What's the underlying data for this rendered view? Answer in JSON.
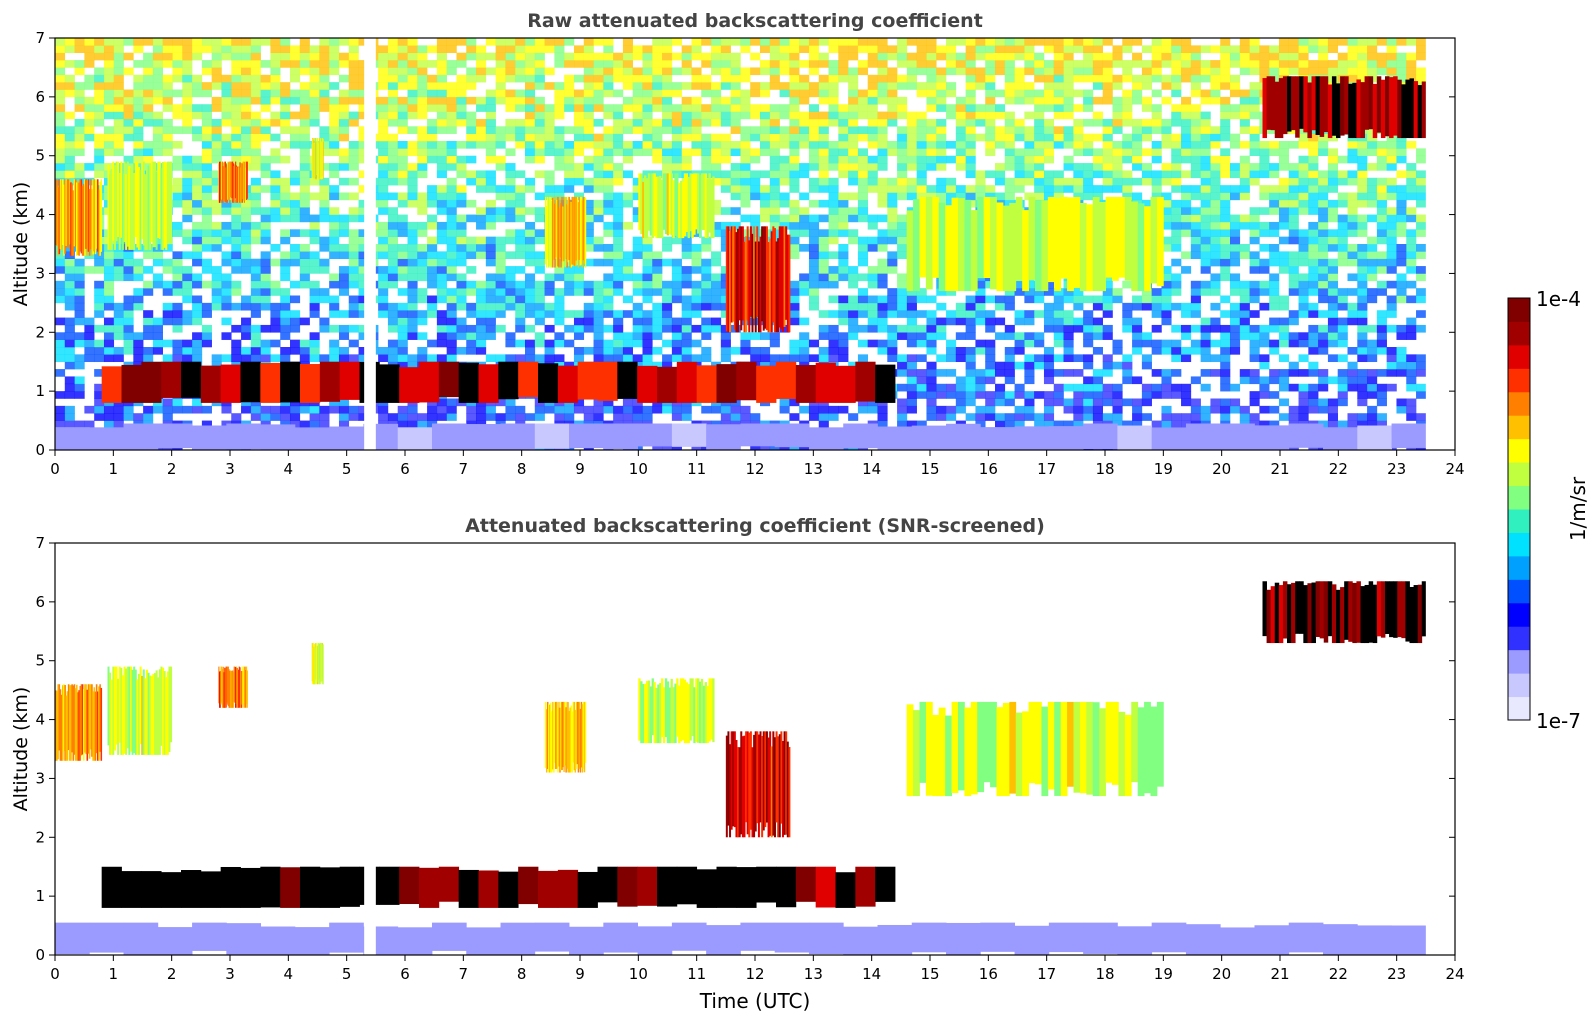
{
  "colors": {
    "background_lowest": "#ffffff",
    "colormap": [
      "#e8e8ff",
      "#c8c8ff",
      "#9a9aff",
      "#3030ff",
      "#0000ff",
      "#0050ff",
      "#00a0ff",
      "#00e0ff",
      "#30f0c0",
      "#80ff80",
      "#c0ff40",
      "#ffff00",
      "#ffc000",
      "#ff8000",
      "#ff3000",
      "#e00000",
      "#a00000",
      "#800000"
    ],
    "saturated": "#000000",
    "axis": "#000000",
    "title_text": "#444444"
  },
  "colorbar": {
    "max_label": "1e-4",
    "min_label": "1e-7",
    "unit_label": "1/m/sr"
  },
  "chart_data": [
    {
      "type": "heatmap",
      "title": "Raw attenuated backscattering coefficient",
      "xlabel": "",
      "ylabel": "Altitude (km)",
      "xlim": [
        0,
        24
      ],
      "ylim": [
        0,
        7
      ],
      "xticks": [
        "0",
        "1",
        "2",
        "3",
        "4",
        "5",
        "6",
        "7",
        "8",
        "9",
        "10",
        "11",
        "12",
        "13",
        "14",
        "15",
        "16",
        "17",
        "18",
        "19",
        "20",
        "21",
        "22",
        "23",
        "24"
      ],
      "yticks": [
        "0",
        "1",
        "2",
        "3",
        "4",
        "5",
        "6",
        "7"
      ],
      "data_end_time": 23.5,
      "data_gap": [
        5.3,
        5.5
      ],
      "noise": "strong",
      "features": [
        {
          "name": "boundary-layer-haze",
          "t": [
            0,
            23.5
          ],
          "alt": [
            0,
            0.45
          ],
          "level": 0.1
        },
        {
          "name": "low-cloud-layer",
          "t": [
            0.8,
            14.4
          ],
          "alt": [
            0.8,
            1.5
          ],
          "level": 0.95
        },
        {
          "name": "cirrus-early-1",
          "t": [
            0,
            0.8
          ],
          "alt": [
            3.3,
            4.6
          ],
          "level": 0.75
        },
        {
          "name": "cirrus-early-2",
          "t": [
            0.9,
            2.0
          ],
          "alt": [
            3.4,
            4.9
          ],
          "level": 0.62
        },
        {
          "name": "cirrus-3h",
          "t": [
            2.8,
            3.3
          ],
          "alt": [
            4.2,
            4.9
          ],
          "level": 0.78
        },
        {
          "name": "cirrus-4h",
          "t": [
            4.4,
            4.6
          ],
          "alt": [
            4.6,
            5.3
          ],
          "level": 0.65
        },
        {
          "name": "cirrus-9h",
          "t": [
            8.4,
            9.1
          ],
          "alt": [
            3.1,
            4.3
          ],
          "level": 0.72
        },
        {
          "name": "cirrus-10-11h",
          "t": [
            10.0,
            11.3
          ],
          "alt": [
            3.6,
            4.7
          ],
          "level": 0.62
        },
        {
          "name": "cirrus-12h",
          "t": [
            11.5,
            12.6
          ],
          "alt": [
            2.0,
            3.8
          ],
          "level": 0.9
        },
        {
          "name": "cirrus-15-19h",
          "t": [
            14.6,
            19.0
          ],
          "alt": [
            2.7,
            4.3
          ],
          "level": 0.62
        },
        {
          "name": "high-cirrus-21-23h",
          "t": [
            20.7,
            23.5
          ],
          "alt": [
            5.3,
            6.35
          ],
          "level": 1.0
        }
      ]
    },
    {
      "type": "heatmap",
      "title": "Attenuated backscattering coefficient (SNR-screened)",
      "xlabel": "Time (UTC)",
      "ylabel": "Altitude (km)",
      "xlim": [
        0,
        24
      ],
      "ylim": [
        0,
        7
      ],
      "xticks": [
        "0",
        "1",
        "2",
        "3",
        "4",
        "5",
        "6",
        "7",
        "8",
        "9",
        "10",
        "11",
        "12",
        "13",
        "14",
        "15",
        "16",
        "17",
        "18",
        "19",
        "20",
        "21",
        "22",
        "23",
        "24"
      ],
      "yticks": [
        "0",
        "1",
        "2",
        "3",
        "4",
        "5",
        "6",
        "7"
      ],
      "data_end_time": 23.5,
      "data_gap": [
        5.3,
        5.5
      ],
      "noise": "none",
      "features": [
        {
          "name": "boundary-layer-haze",
          "t": [
            0,
            23.5
          ],
          "alt": [
            0,
            0.55
          ],
          "level": 0.12
        },
        {
          "name": "low-cloud-layer",
          "t": [
            0.8,
            14.4
          ],
          "alt": [
            0.8,
            1.5
          ],
          "level": 1.05
        },
        {
          "name": "cirrus-early-1",
          "t": [
            0,
            0.8
          ],
          "alt": [
            3.3,
            4.6
          ],
          "level": 0.75
        },
        {
          "name": "cirrus-early-2",
          "t": [
            0.9,
            2.0
          ],
          "alt": [
            3.4,
            4.9
          ],
          "level": 0.62
        },
        {
          "name": "cirrus-3h",
          "t": [
            2.8,
            3.3
          ],
          "alt": [
            4.2,
            4.9
          ],
          "level": 0.78
        },
        {
          "name": "cirrus-4h",
          "t": [
            4.4,
            4.6
          ],
          "alt": [
            4.6,
            5.3
          ],
          "level": 0.65
        },
        {
          "name": "cirrus-9h",
          "t": [
            8.4,
            9.1
          ],
          "alt": [
            3.1,
            4.3
          ],
          "level": 0.72
        },
        {
          "name": "cirrus-10-11h",
          "t": [
            10.0,
            11.3
          ],
          "alt": [
            3.6,
            4.7
          ],
          "level": 0.62
        },
        {
          "name": "cirrus-12h",
          "t": [
            11.5,
            12.6
          ],
          "alt": [
            2.0,
            3.8
          ],
          "level": 0.9
        },
        {
          "name": "cirrus-15-19h",
          "t": [
            14.6,
            19.0
          ],
          "alt": [
            2.7,
            4.3
          ],
          "level": 0.62
        },
        {
          "name": "high-cirrus-21-23h",
          "t": [
            20.7,
            23.5
          ],
          "alt": [
            5.3,
            6.35
          ],
          "level": 1.05
        }
      ]
    }
  ]
}
